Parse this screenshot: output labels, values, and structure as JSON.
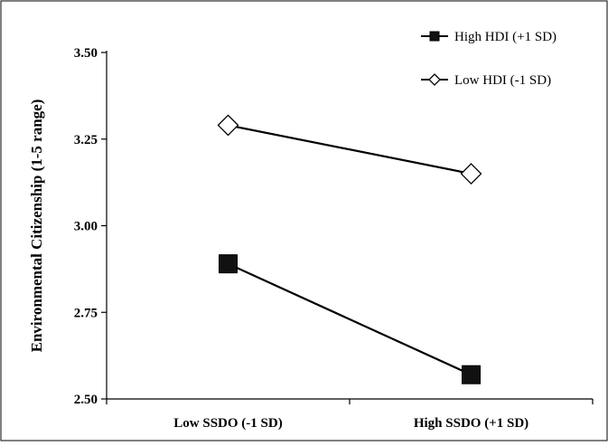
{
  "chart_data": {
    "type": "line",
    "categories": [
      "Low SSDO (-1 SD)",
      "High SSDO (+1 SD)"
    ],
    "series": [
      {
        "name": "High HDI (+1 SD)",
        "values": [
          2.89,
          2.57
        ],
        "marker": "square-filled",
        "color": "#000000"
      },
      {
        "name": "Low HDI (-1 SD)",
        "values": [
          3.29,
          3.15
        ],
        "marker": "diamond-open",
        "color": "#000000"
      }
    ],
    "title": "",
    "xlabel": "",
    "ylabel": "Environmental Citizenship (1-5 range)",
    "ylim": [
      2.5,
      3.5
    ],
    "yticks": [
      "2.50",
      "2.75",
      "3.00",
      "3.25",
      "3.50"
    ],
    "ytick_values": [
      2.5,
      2.75,
      3.0,
      3.25,
      3.5
    ],
    "grid": false,
    "legend": "top-right"
  }
}
